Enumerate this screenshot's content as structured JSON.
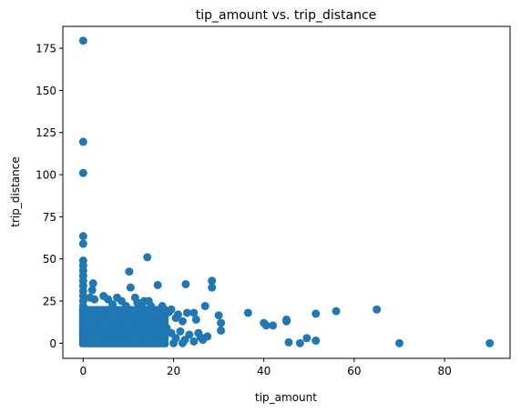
{
  "chart_data": {
    "type": "scatter",
    "title": "tip_amount vs. trip_distance",
    "xlabel": "tip_amount",
    "ylabel": "trip_distance",
    "xlim": [
      -4.5,
      94.5
    ],
    "ylim": [
      -9,
      188
    ],
    "xticks": [
      0,
      20,
      40,
      60,
      80
    ],
    "yticks": [
      0,
      25,
      50,
      75,
      100,
      125,
      150,
      175
    ],
    "grid": false,
    "legend": "none",
    "marker_color": "#1f77b4",
    "series": [
      {
        "points": [
          [
            0,
            179.5
          ],
          [
            0,
            119.5
          ],
          [
            0,
            101
          ],
          [
            0,
            63.5
          ],
          [
            0,
            59
          ],
          [
            0,
            49
          ],
          [
            0,
            46
          ],
          [
            0,
            43
          ],
          [
            0,
            40
          ],
          [
            0,
            37
          ],
          [
            0,
            34
          ],
          [
            0,
            31
          ],
          [
            0,
            28
          ],
          [
            0,
            25
          ],
          [
            0,
            22
          ],
          [
            0,
            19
          ],
          [
            0,
            16
          ],
          [
            0,
            13
          ],
          [
            0,
            10
          ],
          [
            0,
            7
          ],
          [
            0,
            4
          ],
          [
            0,
            1
          ],
          [
            1.5,
            27
          ],
          [
            2,
            31.5
          ],
          [
            2.2,
            35.5
          ],
          [
            2.5,
            26
          ],
          [
            4.5,
            28
          ],
          [
            5.5,
            26
          ],
          [
            6.5,
            23
          ],
          [
            7.5,
            27
          ],
          [
            8.5,
            25
          ],
          [
            9.5,
            22
          ],
          [
            10.2,
            42.5
          ],
          [
            10.5,
            33
          ],
          [
            11.5,
            27
          ],
          [
            12,
            24
          ],
          [
            13,
            22
          ],
          [
            13.5,
            25
          ],
          [
            14.2,
            51
          ],
          [
            14.5,
            25
          ],
          [
            15,
            22
          ],
          [
            15.5,
            17
          ],
          [
            16.5,
            34.5
          ],
          [
            17.5,
            22
          ],
          [
            18,
            12
          ],
          [
            19,
            18.5
          ],
          [
            19.5,
            20
          ],
          [
            20.5,
            15
          ],
          [
            21,
            17
          ],
          [
            22,
            13
          ],
          [
            22.7,
            35
          ],
          [
            23,
            18
          ],
          [
            24.5,
            18
          ],
          [
            25,
            14
          ],
          [
            26,
            3.5
          ],
          [
            27,
            22
          ],
          [
            28.5,
            37
          ],
          [
            28.5,
            33
          ],
          [
            30,
            16.5
          ],
          [
            30.5,
            12
          ],
          [
            30.5,
            7.5
          ],
          [
            36.5,
            18
          ],
          [
            40,
            12
          ],
          [
            40.5,
            10.5
          ],
          [
            42,
            10.5
          ],
          [
            45,
            14
          ],
          [
            45,
            13
          ],
          [
            45.5,
            0.5
          ],
          [
            48,
            0
          ],
          [
            49.5,
            3
          ],
          [
            51.5,
            17.5
          ],
          [
            51.5,
            1.5
          ],
          [
            56,
            19
          ],
          [
            65,
            20
          ],
          [
            70,
            0
          ],
          [
            90,
            0
          ],
          [
            2.5,
            8
          ],
          [
            3.5,
            15
          ],
          [
            4.5,
            5
          ],
          [
            5.5,
            18
          ],
          [
            6.5,
            10
          ],
          [
            7.5,
            3
          ],
          [
            8.5,
            14
          ],
          [
            9.5,
            7
          ],
          [
            10.5,
            17
          ],
          [
            11.5,
            9
          ],
          [
            12.5,
            19
          ],
          [
            13.5,
            5
          ],
          [
            14.5,
            12
          ],
          [
            15.5,
            8
          ],
          [
            16.5,
            15
          ],
          [
            17.5,
            4
          ],
          [
            18.5,
            9
          ],
          [
            19.5,
            6
          ],
          [
            20.5,
            3
          ],
          [
            21.5,
            7
          ],
          [
            22.5,
            2
          ],
          [
            23.5,
            5
          ],
          [
            24.5,
            1
          ],
          [
            25.5,
            6
          ],
          [
            26.5,
            2
          ],
          [
            27.5,
            4
          ],
          [
            20,
            0
          ],
          [
            22,
            0
          ]
        ]
      }
    ]
  }
}
